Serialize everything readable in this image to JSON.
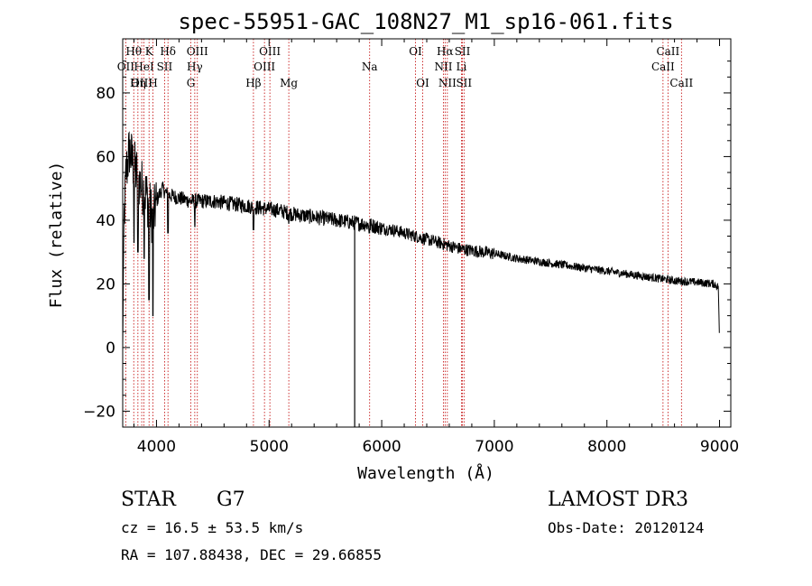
{
  "chart_data": {
    "type": "line",
    "title": "spec-55951-GAC_108N27_M1_sp16-061.fits",
    "xlabel": "Wavelength (Å)",
    "ylabel": "Flux (relative)",
    "xlim": [
      3700,
      9100
    ],
    "ylim": [
      -25,
      97
    ],
    "x_ticks": [
      4000,
      5000,
      6000,
      7000,
      8000,
      9000
    ],
    "y_ticks": [
      -20,
      0,
      20,
      40,
      60,
      80
    ],
    "spectrum_anchors": [
      [
        3700,
        0
      ],
      [
        3710,
        38
      ],
      [
        3730,
        55
      ],
      [
        3760,
        62
      ],
      [
        3790,
        58
      ],
      [
        3820,
        55
      ],
      [
        3850,
        52
      ],
      [
        3880,
        50
      ],
      [
        3910,
        48
      ],
      [
        3940,
        44
      ],
      [
        3970,
        40
      ],
      [
        4000,
        46
      ],
      [
        4050,
        50
      ],
      [
        4100,
        48
      ],
      [
        4200,
        47
      ],
      [
        4300,
        46
      ],
      [
        4400,
        46
      ],
      [
        4500,
        46
      ],
      [
        4600,
        45.5
      ],
      [
        4700,
        45
      ],
      [
        4800,
        44.5
      ],
      [
        4900,
        44
      ],
      [
        5000,
        43.5
      ],
      [
        5100,
        43
      ],
      [
        5200,
        42
      ],
      [
        5300,
        41.5
      ],
      [
        5400,
        41
      ],
      [
        5500,
        40.5
      ],
      [
        5600,
        40
      ],
      [
        5700,
        39.5
      ],
      [
        5800,
        39
      ],
      [
        5900,
        38.5
      ],
      [
        6000,
        37.5
      ],
      [
        6100,
        37
      ],
      [
        6200,
        36
      ],
      [
        6300,
        35
      ],
      [
        6400,
        34
      ],
      [
        6500,
        33
      ],
      [
        6600,
        32
      ],
      [
        6700,
        31
      ],
      [
        6800,
        30.5
      ],
      [
        6900,
        30
      ],
      [
        7000,
        29.5
      ],
      [
        7200,
        28
      ],
      [
        7400,
        27
      ],
      [
        7600,
        26
      ],
      [
        7800,
        25
      ],
      [
        8000,
        24
      ],
      [
        8200,
        23
      ],
      [
        8400,
        22
      ],
      [
        8600,
        21
      ],
      [
        8800,
        20.5
      ],
      [
        8950,
        20
      ],
      [
        8990,
        19
      ],
      [
        9000,
        1
      ]
    ],
    "absorption_dips": [
      [
        3934,
        15
      ],
      [
        3969,
        10
      ],
      [
        3890,
        28
      ],
      [
        3835,
        30
      ],
      [
        3800,
        33
      ],
      [
        4102,
        36
      ],
      [
        4340,
        38
      ],
      [
        4861,
        37
      ],
      [
        5175,
        39
      ],
      [
        5890,
        36
      ]
    ],
    "spike": {
      "x": 5760,
      "y_min": -25
    },
    "lines": [
      {
        "label": "Hθ",
        "wavelength": 3798,
        "row": 0
      },
      {
        "label": "OII",
        "wavelength": 3727,
        "row": 1
      },
      {
        "label": "OIII",
        "wavelength": 3869,
        "row": 2
      },
      {
        "label": "K",
        "wavelength": 3934,
        "row": 0
      },
      {
        "label": "HeI",
        "wavelength": 3889,
        "row": 1
      },
      {
        "label": "Hη",
        "wavelength": 3835,
        "row": 2
      },
      {
        "label": "SII",
        "wavelength": 4072,
        "row": 1
      },
      {
        "label": "H",
        "wavelength": 3969,
        "row": 2
      },
      {
        "label": "Hδ",
        "wavelength": 4102,
        "row": 0
      },
      {
        "label": "OIII",
        "wavelength": 4363,
        "row": 0
      },
      {
        "label": "Hγ",
        "wavelength": 4340,
        "row": 1
      },
      {
        "label": "G",
        "wavelength": 4305,
        "row": 2
      },
      {
        "label": "OIII",
        "wavelength": 5007,
        "row": 0
      },
      {
        "label": "OIII",
        "wavelength": 4959,
        "row": 1
      },
      {
        "label": "Hβ",
        "wavelength": 4861,
        "row": 2
      },
      {
        "label": "Mg",
        "wavelength": 5175,
        "row": 2
      },
      {
        "label": "Na",
        "wavelength": 5893,
        "row": 1
      },
      {
        "label": "OI",
        "wavelength": 6300,
        "row": 0
      },
      {
        "label": "OI",
        "wavelength": 6364,
        "row": 2
      },
      {
        "label": "Hα",
        "wavelength": 6563,
        "row": 0
      },
      {
        "label": "SII",
        "wavelength": 6717,
        "row": 0
      },
      {
        "label": "NII",
        "wavelength": 6548,
        "row": 1
      },
      {
        "label": "Li",
        "wavelength": 6708,
        "row": 1
      },
      {
        "label": "NII",
        "wavelength": 6583,
        "row": 2
      },
      {
        "label": "SII",
        "wavelength": 6731,
        "row": 2
      },
      {
        "label": "CaII",
        "wavelength": 8542,
        "row": 0
      },
      {
        "label": "CaII",
        "wavelength": 8498,
        "row": 1
      },
      {
        "label": "CaII",
        "wavelength": 8662,
        "row": 2
      }
    ]
  },
  "footer": {
    "class_label": "STAR",
    "subclass": "G7",
    "survey": "LAMOST DR3",
    "cz": "cz = 16.5 ± 53.5 km/s",
    "obs_date": "Obs-Date: 20120124",
    "coords": "RA = 107.88438, DEC =  29.66855"
  },
  "colors": {
    "line_marker": "#c00000",
    "spectrum": "#000000"
  }
}
